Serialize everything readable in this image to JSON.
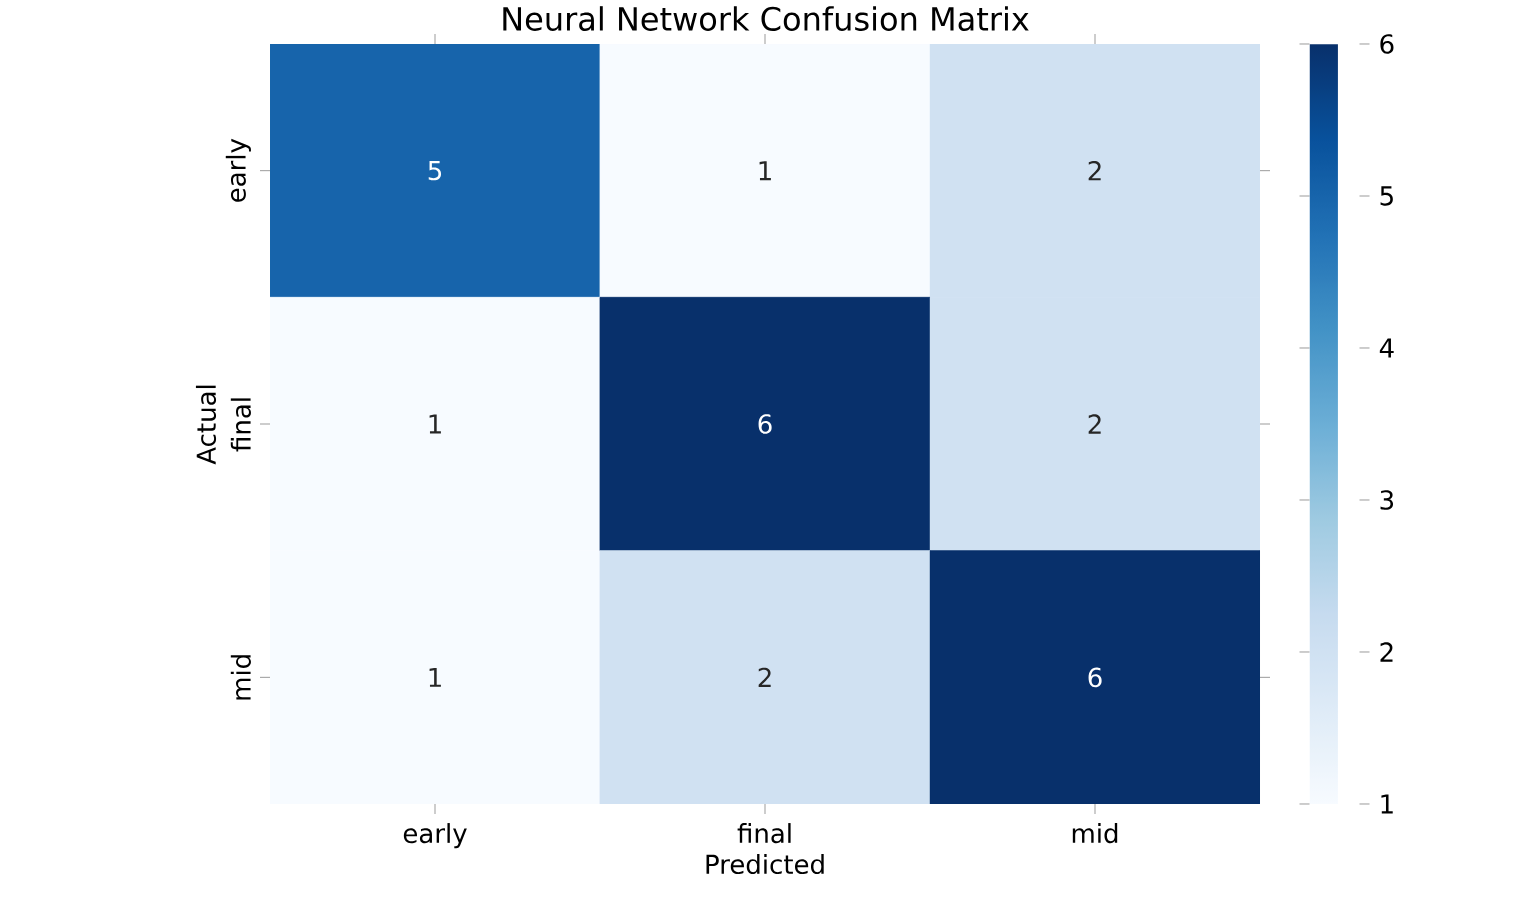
{
  "chart_data": {
    "type": "heatmap",
    "title": "Neural Network Confusion Matrix",
    "xlabel": "Predicted",
    "ylabel": "Actual",
    "categories": [
      "early",
      "final",
      "mid"
    ],
    "y_categories": [
      "early",
      "final",
      "mid"
    ],
    "cells": [
      [
        5,
        1,
        2
      ],
      [
        1,
        6,
        2
      ],
      [
        1,
        2,
        6
      ]
    ],
    "clim": [
      1,
      6
    ],
    "cticks": [
      1,
      2,
      3,
      4,
      5,
      6
    ],
    "data_labels": true
  }
}
